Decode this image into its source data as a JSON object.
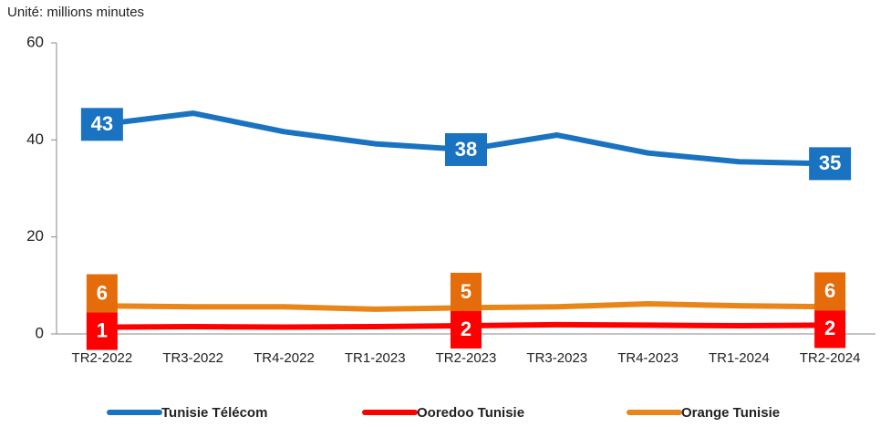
{
  "chart_data": {
    "type": "line",
    "subtitle": "Unité: millions minutes",
    "categories": [
      "TR2-2022",
      "TR3-2022",
      "TR4-2022",
      "TR1-2023",
      "TR2-2023",
      "TR3-2023",
      "TR4-2023",
      "TR1-2024",
      "TR2-2024"
    ],
    "series": [
      {
        "name": "Tunisie Télécom",
        "color": "#1a73c0",
        "values": [
          43.2,
          45.5,
          41.7,
          39.2,
          38,
          41,
          37.3,
          35.5,
          35.1
        ],
        "value_labels": [
          "43",
          null,
          null,
          null,
          "38",
          null,
          null,
          null,
          "35"
        ]
      },
      {
        "name": "Ooredoo Tunisie",
        "color": "#ff0000",
        "values": [
          1.4,
          1.5,
          1.4,
          1.5,
          1.7,
          1.9,
          1.8,
          1.7,
          1.8
        ],
        "value_labels": [
          "1",
          null,
          null,
          null,
          "2",
          null,
          null,
          null,
          "2"
        ]
      },
      {
        "name": "Orange Tunisie",
        "color": "#e8861a",
        "values": [
          5.8,
          5.6,
          5.6,
          5.1,
          5.4,
          5.6,
          6.2,
          5.8,
          5.6
        ],
        "value_labels": [
          "6",
          null,
          null,
          null,
          "5",
          null,
          null,
          null,
          "6"
        ]
      }
    ],
    "ylim": [
      0,
      60
    ],
    "yticks": [
      0,
      20,
      40,
      60
    ]
  }
}
